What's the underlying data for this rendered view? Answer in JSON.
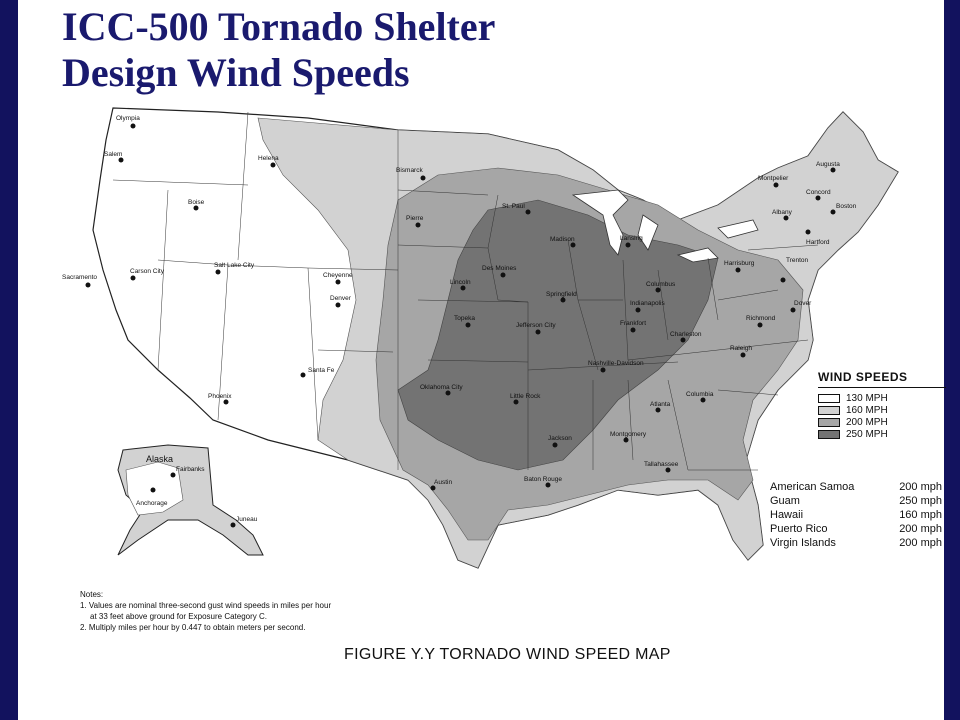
{
  "title_lines": [
    "ICC-500 Tornado Shelter",
    "Design Wind Speeds"
  ],
  "caption": "FIGURE Y.Y  TORNADO WIND SPEED MAP",
  "legend": {
    "title": "WIND SPEEDS",
    "items": [
      {
        "label": "130 MPH",
        "color": "#ffffff"
      },
      {
        "label": "160 MPH",
        "color": "#d2d2d2"
      },
      {
        "label": "200 MPH",
        "color": "#a6a6a6"
      },
      {
        "label": "250 MPH",
        "color": "#737373"
      }
    ]
  },
  "territories": [
    {
      "name": "American Samoa",
      "speed": "200 mph"
    },
    {
      "name": "Guam",
      "speed": "250 mph"
    },
    {
      "name": "Hawaii",
      "speed": "160 mph"
    },
    {
      "name": "Puerto Rico",
      "speed": "200 mph"
    },
    {
      "name": "Virgin Islands",
      "speed": "200 mph"
    }
  ],
  "notes": [
    "Notes:",
    "1. Values are nominal three-second gust wind speeds in miles per hour",
    "    at 33 feet above ground for Exposure Category C.",
    "2. Multiply miles per hour by 0.447 to obtain meters per second."
  ],
  "cities": [
    "Olympia",
    "Salem",
    "Helena",
    "Boise",
    "Bismarck",
    "Pierre",
    "St. Paul",
    "Madison",
    "Lansing",
    "Montpelier",
    "Augusta",
    "Concord",
    "Albany",
    "Boston",
    "Hartford",
    "Sacramento",
    "Carson City",
    "Salt Lake City",
    "Cheyenne",
    "Denver",
    "Lincoln",
    "Des Moines",
    "Springfield",
    "Columbus",
    "Harrisburg",
    "Trenton",
    "Dover",
    "Indianapolis",
    "Topeka",
    "Jefferson City",
    "Frankfort",
    "Charleston",
    "Richmond",
    "Nashville-Davidson",
    "Raleigh",
    "Santa Fe",
    "Phoenix",
    "Oklahoma City",
    "Little Rock",
    "Columbia",
    "Atlanta",
    "Jackson",
    "Montgomery",
    "Tallahassee",
    "Austin",
    "Baton Rouge",
    "Juneau",
    "Anchorage",
    "Fairbanks",
    "Alaska"
  ]
}
